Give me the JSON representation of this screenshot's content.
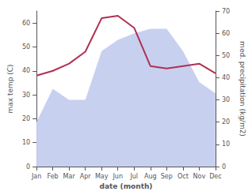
{
  "chart_data": {
    "type": "line",
    "xlabel": "date (month)",
    "ylabel": "max temp (C)",
    "y2label": "med. precipitation (kg/m2)",
    "categories": [
      "Jan",
      "Feb",
      "Mar",
      "Apr",
      "May",
      "Jun",
      "Jul",
      "Aug",
      "Sep",
      "Oct",
      "Nov",
      "Dec"
    ],
    "series": [
      {
        "type": "area",
        "axis": "y2",
        "color": "#c8d0f0",
        "values": [
          20,
          35,
          30,
          30,
          52,
          57,
          60,
          62,
          62,
          52,
          38,
          33
        ]
      },
      {
        "type": "line",
        "color": "#b03050",
        "values": [
          38,
          40,
          43,
          48,
          62,
          63,
          58,
          42,
          41,
          42,
          43,
          39
        ]
      }
    ],
    "ylim": [
      0,
      65
    ],
    "yticks": [
      0,
      10,
      20,
      30,
      40,
      50,
      60
    ],
    "y2lim": [
      0,
      70
    ],
    "y2ticks": [
      0,
      10,
      20,
      30,
      40,
      50,
      60,
      70
    ],
    "grid": false
  }
}
